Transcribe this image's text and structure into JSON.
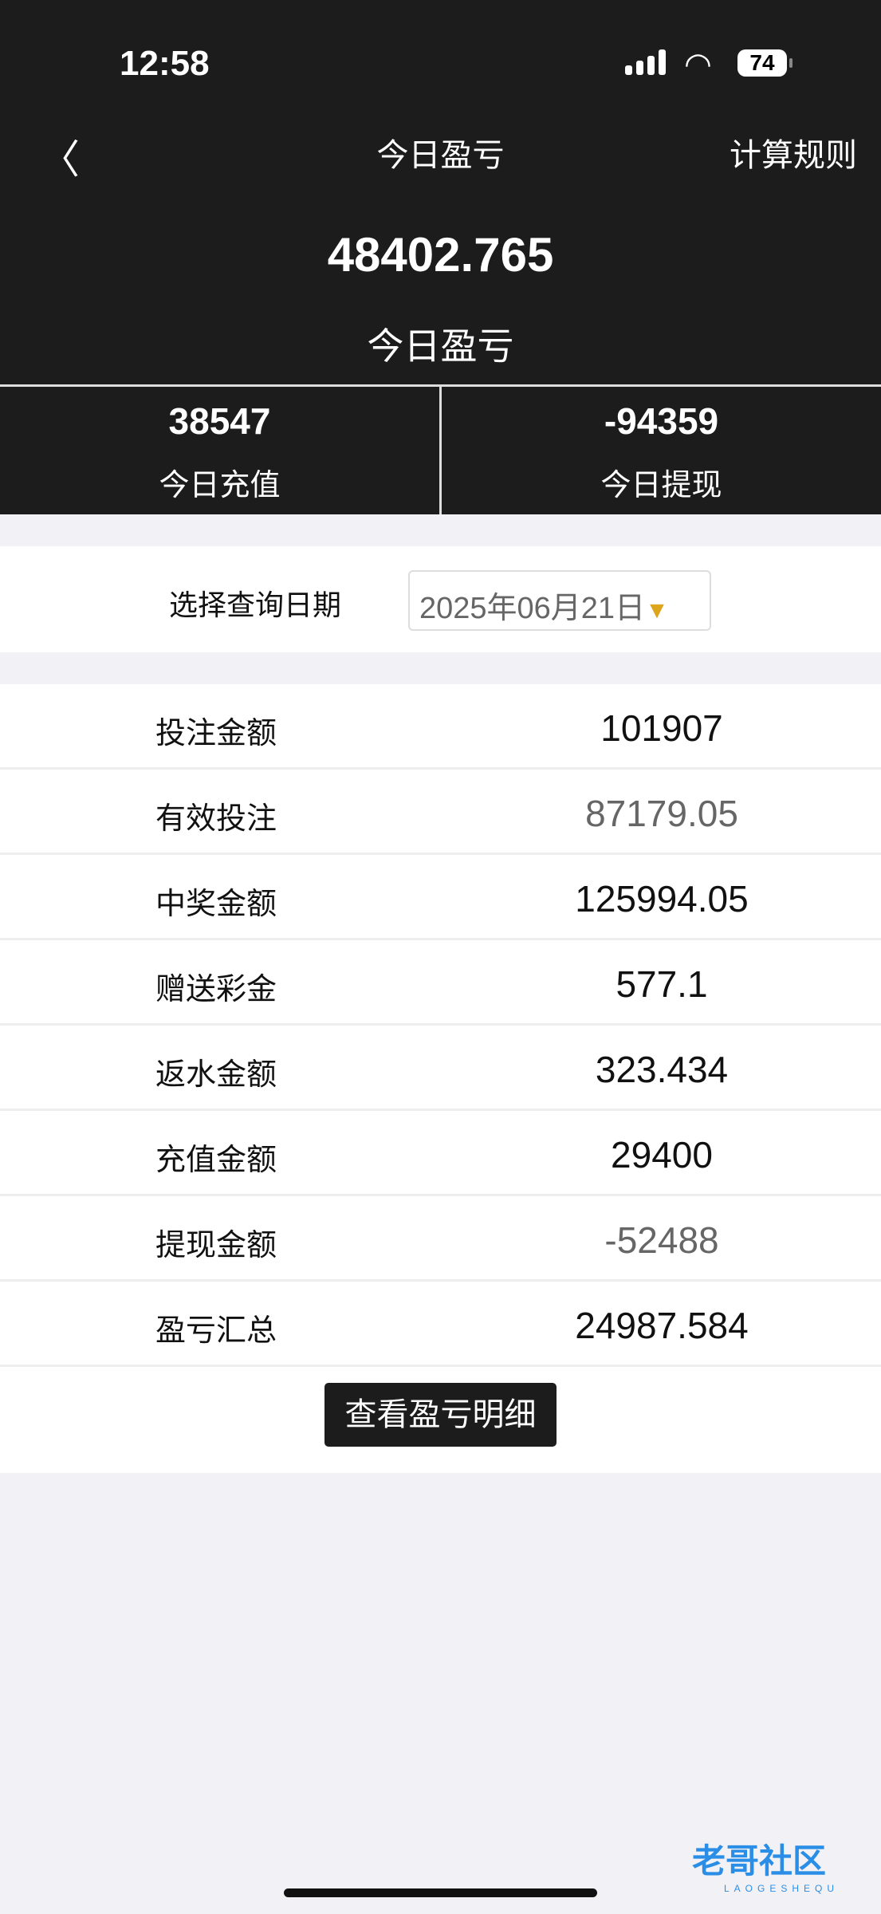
{
  "status_bar": {
    "time": "12:58",
    "battery": "74"
  },
  "nav": {
    "title": "今日盈亏",
    "right_label": "计算规则"
  },
  "summary": {
    "value": "48402.765",
    "label": "今日盈亏"
  },
  "stats": [
    {
      "value": "38547",
      "label": "今日充值"
    },
    {
      "value": "-94359",
      "label": "今日提现"
    }
  ],
  "date_filter": {
    "label": "选择查询日期",
    "value": "2025年06月21日"
  },
  "rows": [
    {
      "label": "投注金额",
      "value": "101907"
    },
    {
      "label": "有效投注",
      "value": "87179.05"
    },
    {
      "label": "中奖金额",
      "value": "125994.05"
    },
    {
      "label": "赠送彩金",
      "value": "577.1"
    },
    {
      "label": "返水金额",
      "value": "323.434"
    },
    {
      "label": "充值金额",
      "value": "29400"
    },
    {
      "label": "提现金额",
      "value": "-52488"
    },
    {
      "label": "盈亏汇总",
      "value": "24987.584"
    }
  ],
  "detail_button": "查看盈亏明细",
  "watermark": {
    "text": "老哥社区",
    "sub": "LAOGESHEQU"
  },
  "colors": {
    "header_bg": "#1c1c1d",
    "accent": "#dca51c"
  }
}
